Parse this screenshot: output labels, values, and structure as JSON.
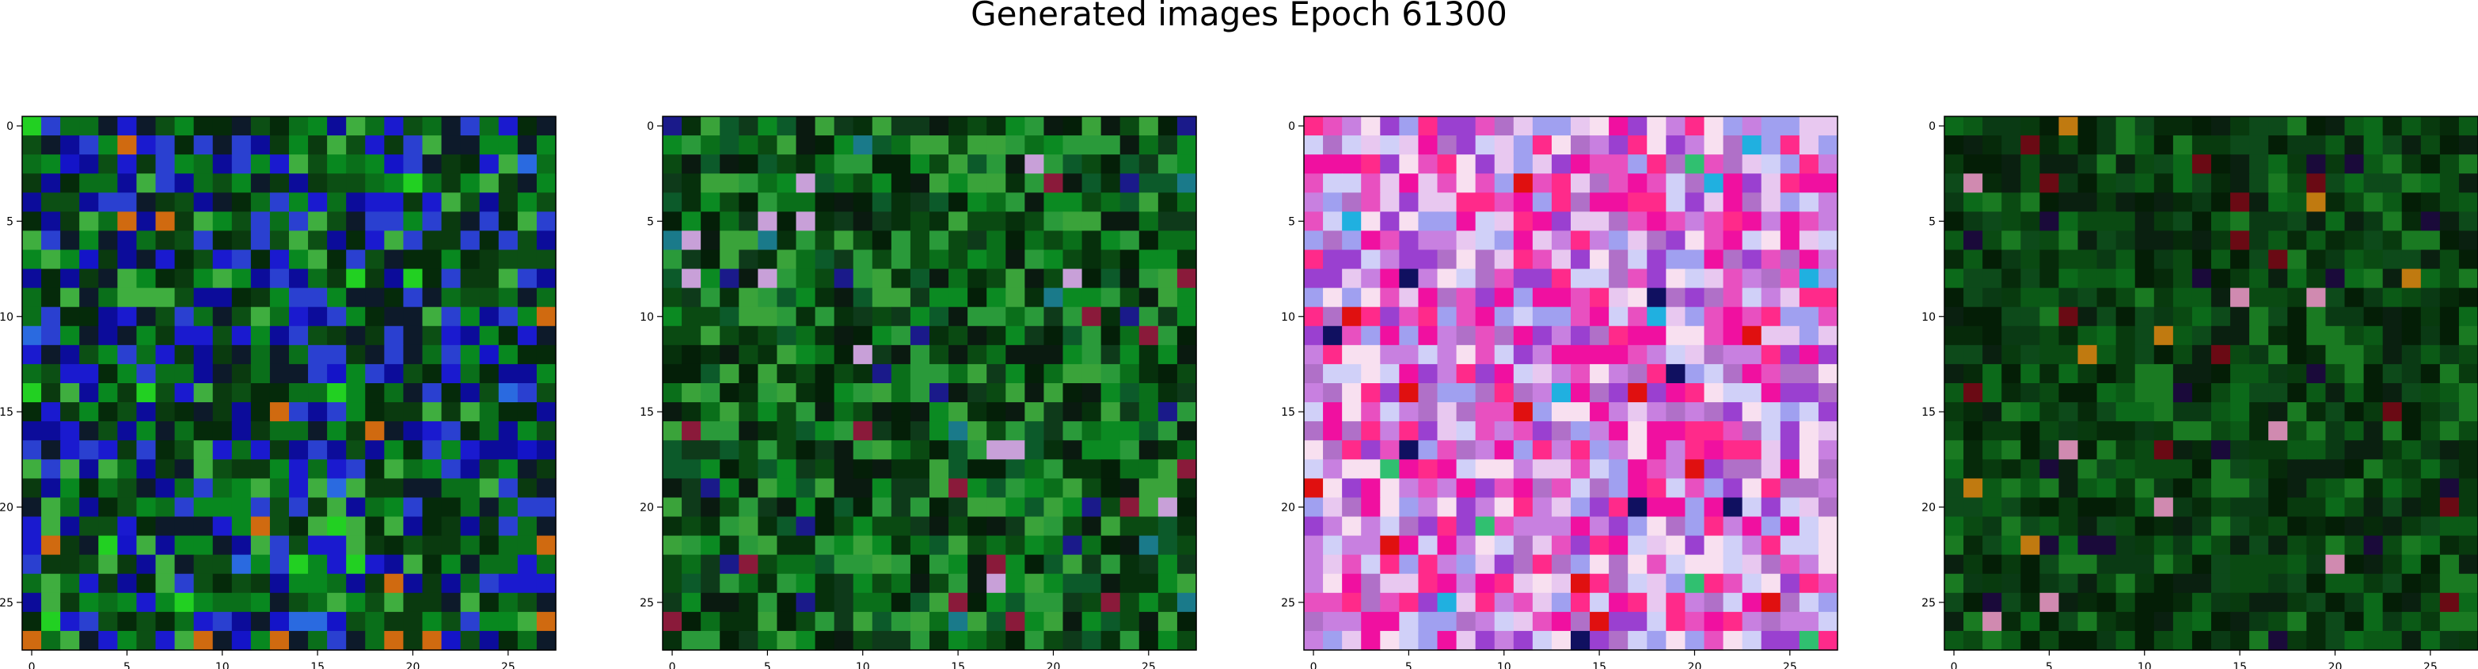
{
  "figure": {
    "title": "Generated images Epoch 61300"
  },
  "chart_data": [
    {
      "type": "heatmap",
      "rendering": "RGB image, 28x28 pixels",
      "x_ticks": [
        "0",
        "5",
        "10",
        "15",
        "20",
        "25"
      ],
      "y_ticks": [
        "0",
        "5",
        "10",
        "15",
        "20",
        "25"
      ],
      "xlim": [
        -0.5,
        27.5
      ],
      "ylim": [
        27.5,
        -0.5
      ],
      "palette": [
        "#0a6f1a",
        "#0c4f14",
        "#0a3a0f",
        "#08881f",
        "#052a0a",
        "#1a1acf",
        "#0c0c9a",
        "#2a40d0",
        "#3fae3f",
        "#0d1a2a"
      ],
      "dominant_color": "#0a5a16",
      "accent_colors": [
        "#1414c8",
        "#2a6ae0",
        "#22d022",
        "#d06a10"
      ]
    },
    {
      "type": "heatmap",
      "rendering": "RGB image, 28x28 pixels",
      "x_ticks": [
        "0",
        "5",
        "10",
        "15",
        "20",
        "25"
      ],
      "y_ticks": [
        "0",
        "5",
        "10",
        "15",
        "20",
        "25"
      ],
      "xlim": [
        -0.5,
        27.5
      ],
      "ylim": [
        27.5,
        -0.5
      ],
      "palette": [
        "#0a6f1a",
        "#0a4a12",
        "#06300c",
        "#0b8a22",
        "#041f08",
        "#2a9a3a",
        "#0a1a10",
        "#3aa33a",
        "#0e3a1a",
        "#0c5a2a"
      ],
      "dominant_color": "#0a4a12",
      "accent_colors": [
        "#c8a0d8",
        "#1a7a8a",
        "#1a1a8a",
        "#8a1a3a"
      ]
    },
    {
      "type": "heatmap",
      "rendering": "RGB image, 28x28 pixels",
      "x_ticks": [
        "0",
        "5",
        "10",
        "15",
        "20",
        "25"
      ],
      "y_ticks": [
        "0",
        "5",
        "10",
        "15",
        "20",
        "25"
      ],
      "xlim": [
        -0.5,
        27.5
      ],
      "ylim": [
        27.5,
        -0.5
      ],
      "palette": [
        "#e8c8f0",
        "#c880e0",
        "#f010a0",
        "#e850c0",
        "#a0a0f0",
        "#d0d0f8",
        "#9a40d0",
        "#f8e0f0",
        "#b070c8",
        "#ff2a8a"
      ],
      "dominant_color": "#d890e0",
      "accent_colors": [
        "#e01010",
        "#20b0e0",
        "#101060",
        "#30c070"
      ]
    },
    {
      "type": "heatmap",
      "rendering": "RGB image, 28x28 pixels",
      "x_ticks": [
        "0",
        "5",
        "10",
        "15",
        "20",
        "25"
      ],
      "y_ticks": [
        "0",
        "5",
        "10",
        "15",
        "20",
        "25"
      ],
      "xlim": [
        -0.5,
        27.5
      ],
      "ylim": [
        27.5,
        -0.5
      ],
      "palette": [
        "#0a4a12",
        "#083a0e",
        "#0b5a16",
        "#062a0a",
        "#0c6a1a",
        "#041e06",
        "#0a3a14",
        "#1a7a22",
        "#0a2010",
        "#0d4a1a"
      ],
      "dominant_color": "#083a0e",
      "accent_colors": [
        "#c07a10",
        "#d08ab0",
        "#6a0a14",
        "#1a0a3a"
      ]
    }
  ]
}
